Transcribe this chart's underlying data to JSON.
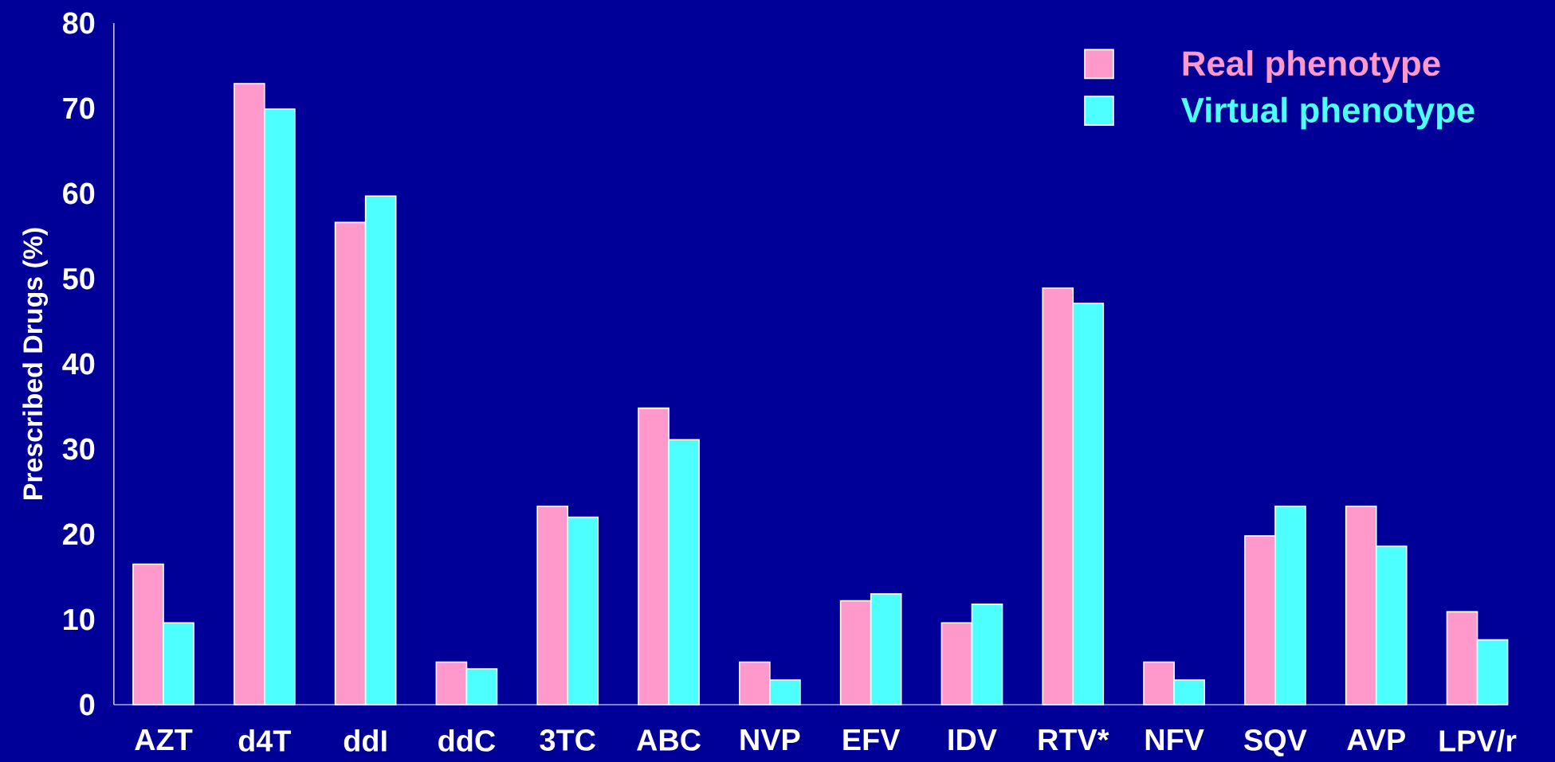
{
  "chart_data": {
    "type": "bar",
    "ylabel": "Prescribed Drugs (%)",
    "categories": [
      "AZT",
      "d4T",
      "ddI",
      "ddC",
      "3TC",
      "ABC",
      "NVP",
      "EFV",
      "IDV",
      "RTV*",
      "NFV",
      "SQV",
      "AVP",
      "LPV/r"
    ],
    "series": [
      {
        "name": "Real phenotype",
        "color": "#ff99cc",
        "values": [
          16.5,
          72.9,
          56.6,
          5.0,
          23.3,
          34.8,
          5.0,
          12.2,
          9.6,
          48.9,
          5.0,
          19.8,
          23.3,
          10.9
        ]
      },
      {
        "name": "Virtual phenotype",
        "color": "#4dffff",
        "values": [
          9.6,
          69.9,
          59.7,
          4.2,
          22.0,
          31.1,
          2.9,
          13.0,
          11.8,
          47.1,
          2.9,
          23.3,
          18.6,
          7.6
        ]
      }
    ],
    "ylim": [
      0,
      80
    ],
    "yticks": [
      0,
      10,
      20,
      30,
      40,
      50,
      60,
      70,
      80
    ],
    "grid": false,
    "legend": "top right"
  }
}
